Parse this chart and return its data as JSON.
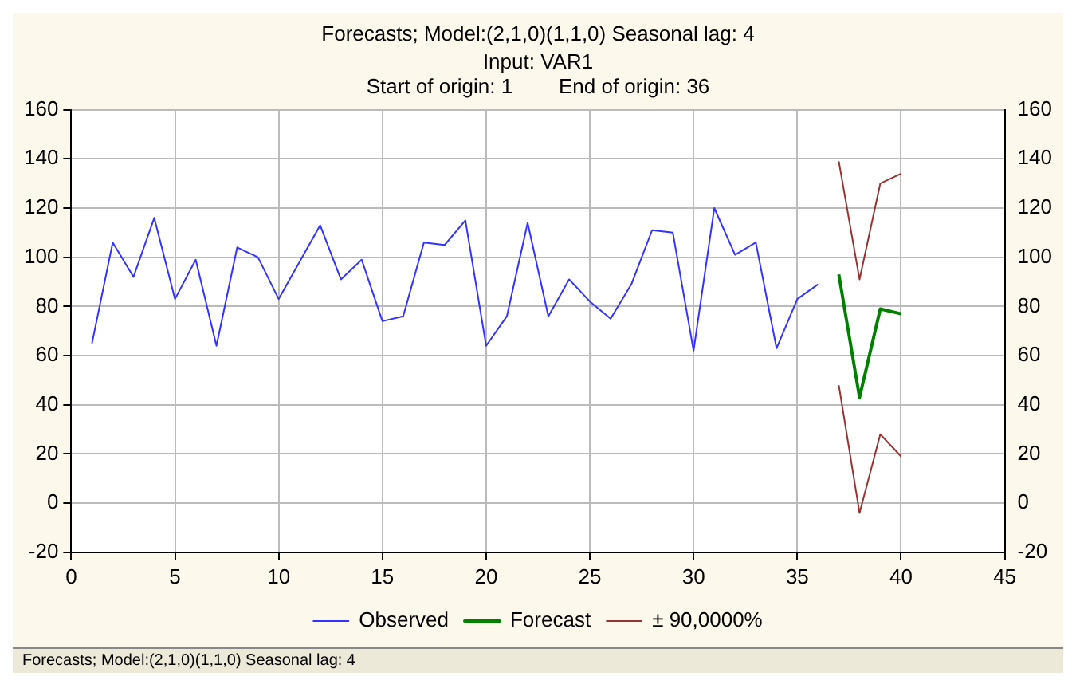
{
  "chart_data": {
    "type": "line",
    "title": "Forecasts; Model:(2,1,0)(1,1,0) Seasonal lag: 4",
    "subtitle": [
      "Input: VAR1",
      "Start of origin: 1        End of origin: 36"
    ],
    "x": [
      1,
      2,
      3,
      4,
      5,
      6,
      7,
      8,
      9,
      10,
      11,
      12,
      13,
      14,
      15,
      16,
      17,
      18,
      19,
      20,
      21,
      22,
      23,
      24,
      25,
      26,
      27,
      28,
      29,
      30,
      31,
      32,
      33,
      34,
      35,
      36
    ],
    "series": [
      {
        "name": "Observed",
        "color": "#3333ff",
        "values": [
          65,
          106,
          92,
          116,
          83,
          99,
          64,
          104,
          100,
          83,
          98,
          113,
          91,
          99,
          74,
          76,
          106,
          105,
          115,
          64,
          76,
          114,
          76,
          91,
          82,
          75,
          89,
          111,
          110,
          62,
          120,
          101,
          106,
          63,
          83,
          89
        ]
      },
      {
        "name": "Forecast",
        "color": "#008000",
        "x": [
          37,
          38,
          39,
          40
        ],
        "values": [
          93,
          43,
          79,
          77
        ]
      },
      {
        "name": "± 90,0000%",
        "color": "#993333",
        "x": [
          37,
          38,
          39,
          40
        ],
        "values": [
          139,
          91,
          130,
          134
        ]
      },
      {
        "color": "#993333",
        "x": [
          37,
          38,
          39,
          40
        ],
        "values": [
          48,
          -4,
          28,
          19
        ]
      }
    ],
    "xlim": [
      0,
      45
    ],
    "xticks": [
      0,
      5,
      10,
      15,
      20,
      25,
      30,
      35,
      40,
      45
    ],
    "ylim": [
      -20,
      160
    ],
    "yticks": [
      -20,
      0,
      20,
      40,
      60,
      80,
      100,
      120,
      140,
      160
    ],
    "y2lim": [
      -20,
      160
    ],
    "y2ticks": [
      -20,
      0,
      20,
      40,
      60,
      80,
      100,
      120,
      140,
      160
    ],
    "grid": true,
    "legend": "bottom",
    "marker": "none",
    "line_style": "solid",
    "annotations": [
      "Forecasts; Model:(2,1,0)(1,1,0) Seasonal lag: 4"
    ]
  }
}
